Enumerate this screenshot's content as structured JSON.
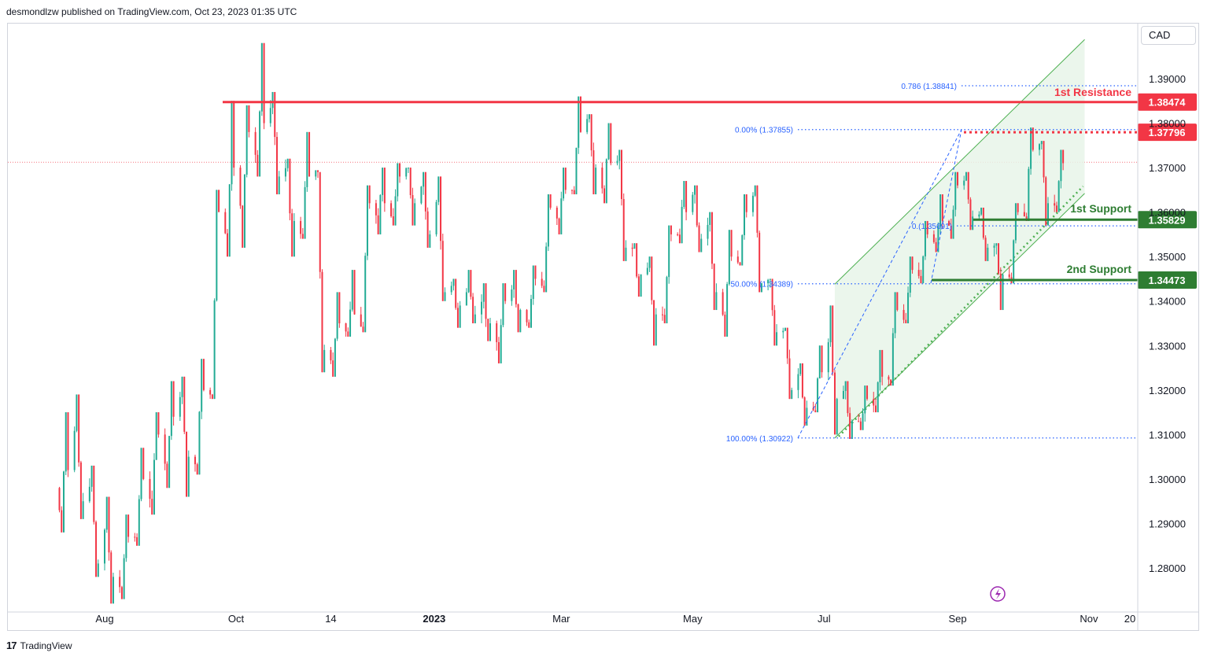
{
  "header": {
    "publisher_text": "desmondlzw published on TradingView.com, Oct 23, 2023 01:35 UTC",
    "currency": "CAD"
  },
  "footer": {
    "brand": "TradingView",
    "logo_mark": "17"
  },
  "colors": {
    "up": "#22ab94",
    "down": "#f23645",
    "resistance": "#f23645",
    "support": "#2e7d32",
    "fib": "#2962ff",
    "channel": "#4caf50",
    "channel_fill": "#e8f5e9"
  },
  "chart_data": {
    "type": "candlestick",
    "symbol_currency": "CAD",
    "ylim": [
      1.2714,
      1.4003
    ],
    "y_ticks": [
      1.39,
      1.38,
      1.37,
      1.36,
      1.35,
      1.34,
      1.33,
      1.32,
      1.31,
      1.3,
      1.29,
      1.28
    ],
    "y_tick_labels": [
      "1.39000",
      "1.38000",
      "1.37000",
      "1.36000",
      "1.35000",
      "1.34000",
      "1.33000",
      "1.32000",
      "1.31000",
      "1.30000",
      "1.29000",
      "1.28000"
    ],
    "x_ticks": [
      "Aug",
      "Oct",
      "14",
      "2023",
      "Mar",
      "May",
      "Jul",
      "Sep",
      "Nov",
      "20"
    ],
    "x_tick_dates": [
      "2022-08-01",
      "2022-10-01",
      "2022-11-14",
      "2023-01-01",
      "2023-03-01",
      "2023-05-01",
      "2023-07-01",
      "2023-09-01",
      "2023-11-01",
      "2023-11-20"
    ],
    "current_price_line": 1.3712,
    "levels": [
      {
        "name": "1st Resistance",
        "value": 1.38474,
        "label": "1.38474",
        "kind": "resistance"
      },
      {
        "name": "",
        "value": 1.37796,
        "label": "1.37796",
        "kind": "resistance-dotted"
      },
      {
        "name": "1st Support",
        "value": 1.35829,
        "label": "1.35829",
        "kind": "support"
      },
      {
        "name": "2nd Support",
        "value": 1.34473,
        "label": "1.34473",
        "kind": "support"
      }
    ],
    "fibonacci": [
      {
        "label": "0.786 (1.38841)",
        "value": 1.38841
      },
      {
        "label": "0.00% (1.37855)",
        "value": 1.37855
      },
      {
        "label": "0.(1.35691)",
        "value": 1.35691
      },
      {
        "label": "50.00% (1.34389)",
        "value": 1.34389
      },
      {
        "label": "100.00% (1.30922)",
        "value": 1.30922
      }
    ],
    "channel": {
      "start_date": "2023-07-06",
      "end_date": "2023-10-30",
      "upper_start": 1.3438,
      "upper_end": 1.3988,
      "lower_start": 1.3092,
      "lower_end": 1.3642
    },
    "ohlc_weekly": [
      {
        "t": "2022-07-11",
        "o": 1.298,
        "h": 1.315,
        "l": 1.288,
        "c": 1.302
      },
      {
        "t": "2022-07-18",
        "o": 1.302,
        "h": 1.319,
        "l": 1.291,
        "c": 1.295
      },
      {
        "t": "2022-07-25",
        "o": 1.295,
        "h": 1.303,
        "l": 1.278,
        "c": 1.281
      },
      {
        "t": "2022-08-01",
        "o": 1.281,
        "h": 1.296,
        "l": 1.272,
        "c": 1.278
      },
      {
        "t": "2022-08-08",
        "o": 1.278,
        "h": 1.292,
        "l": 1.273,
        "c": 1.287
      },
      {
        "t": "2022-08-15",
        "o": 1.287,
        "h": 1.307,
        "l": 1.285,
        "c": 1.3
      },
      {
        "t": "2022-08-22",
        "o": 1.3,
        "h": 1.315,
        "l": 1.292,
        "c": 1.31
      },
      {
        "t": "2022-08-29",
        "o": 1.31,
        "h": 1.322,
        "l": 1.298,
        "c": 1.314
      },
      {
        "t": "2022-09-05",
        "o": 1.314,
        "h": 1.323,
        "l": 1.296,
        "c": 1.305
      },
      {
        "t": "2022-09-12",
        "o": 1.305,
        "h": 1.327,
        "l": 1.301,
        "c": 1.32
      },
      {
        "t": "2022-09-19",
        "o": 1.32,
        "h": 1.365,
        "l": 1.318,
        "c": 1.36
      },
      {
        "t": "2022-09-26",
        "o": 1.36,
        "h": 1.385,
        "l": 1.35,
        "c": 1.37
      },
      {
        "t": "2022-10-03",
        "o": 1.37,
        "h": 1.384,
        "l": 1.352,
        "c": 1.378
      },
      {
        "t": "2022-10-10",
        "o": 1.378,
        "h": 1.398,
        "l": 1.368,
        "c": 1.38
      },
      {
        "t": "2022-10-17",
        "o": 1.38,
        "h": 1.387,
        "l": 1.364,
        "c": 1.368
      },
      {
        "t": "2022-10-24",
        "o": 1.368,
        "h": 1.372,
        "l": 1.35,
        "c": 1.358
      },
      {
        "t": "2022-10-31",
        "o": 1.358,
        "h": 1.378,
        "l": 1.354,
        "c": 1.368
      },
      {
        "t": "2022-11-07",
        "o": 1.368,
        "h": 1.369,
        "l": 1.324,
        "c": 1.329
      },
      {
        "t": "2022-11-14",
        "o": 1.329,
        "h": 1.342,
        "l": 1.323,
        "c": 1.335
      },
      {
        "t": "2022-11-21",
        "o": 1.335,
        "h": 1.347,
        "l": 1.332,
        "c": 1.337
      },
      {
        "t": "2022-11-28",
        "o": 1.337,
        "h": 1.366,
        "l": 1.333,
        "c": 1.362
      },
      {
        "t": "2022-12-05",
        "o": 1.362,
        "h": 1.37,
        "l": 1.355,
        "c": 1.362
      },
      {
        "t": "2022-12-12",
        "o": 1.362,
        "h": 1.371,
        "l": 1.357,
        "c": 1.368
      },
      {
        "t": "2022-12-19",
        "o": 1.368,
        "h": 1.37,
        "l": 1.357,
        "c": 1.362
      },
      {
        "t": "2022-12-26",
        "o": 1.362,
        "h": 1.369,
        "l": 1.352,
        "c": 1.355
      },
      {
        "t": "2023-01-02",
        "o": 1.355,
        "h": 1.368,
        "l": 1.34,
        "c": 1.342
      },
      {
        "t": "2023-01-09",
        "o": 1.342,
        "h": 1.345,
        "l": 1.334,
        "c": 1.339
      },
      {
        "t": "2023-01-16",
        "o": 1.339,
        "h": 1.347,
        "l": 1.335,
        "c": 1.337
      },
      {
        "t": "2023-01-23",
        "o": 1.337,
        "h": 1.344,
        "l": 1.331,
        "c": 1.335
      },
      {
        "t": "2023-01-30",
        "o": 1.335,
        "h": 1.344,
        "l": 1.326,
        "c": 1.34
      },
      {
        "t": "2023-02-06",
        "o": 1.34,
        "h": 1.347,
        "l": 1.333,
        "c": 1.338
      },
      {
        "t": "2023-02-13",
        "o": 1.338,
        "h": 1.348,
        "l": 1.334,
        "c": 1.345
      },
      {
        "t": "2023-02-20",
        "o": 1.345,
        "h": 1.364,
        "l": 1.342,
        "c": 1.361
      },
      {
        "t": "2023-02-27",
        "o": 1.361,
        "h": 1.37,
        "l": 1.355,
        "c": 1.365
      },
      {
        "t": "2023-03-06",
        "o": 1.365,
        "h": 1.386,
        "l": 1.364,
        "c": 1.378
      },
      {
        "t": "2023-03-13",
        "o": 1.378,
        "h": 1.382,
        "l": 1.364,
        "c": 1.37
      },
      {
        "t": "2023-03-20",
        "o": 1.37,
        "h": 1.38,
        "l": 1.362,
        "c": 1.371
      },
      {
        "t": "2023-03-27",
        "o": 1.371,
        "h": 1.374,
        "l": 1.349,
        "c": 1.352
      },
      {
        "t": "2023-04-03",
        "o": 1.352,
        "h": 1.353,
        "l": 1.341,
        "c": 1.346
      },
      {
        "t": "2023-04-10",
        "o": 1.346,
        "h": 1.35,
        "l": 1.33,
        "c": 1.337
      },
      {
        "t": "2023-04-17",
        "o": 1.337,
        "h": 1.357,
        "l": 1.335,
        "c": 1.355
      },
      {
        "t": "2023-04-24",
        "o": 1.355,
        "h": 1.367,
        "l": 1.353,
        "c": 1.36
      },
      {
        "t": "2023-05-01",
        "o": 1.36,
        "h": 1.366,
        "l": 1.351,
        "c": 1.354
      },
      {
        "t": "2023-05-08",
        "o": 1.354,
        "h": 1.36,
        "l": 1.338,
        "c": 1.342
      },
      {
        "t": "2023-05-15",
        "o": 1.342,
        "h": 1.356,
        "l": 1.332,
        "c": 1.35
      },
      {
        "t": "2023-05-22",
        "o": 1.35,
        "h": 1.364,
        "l": 1.348,
        "c": 1.36
      },
      {
        "t": "2023-05-29",
        "o": 1.36,
        "h": 1.366,
        "l": 1.342,
        "c": 1.344
      },
      {
        "t": "2023-06-05",
        "o": 1.344,
        "h": 1.345,
        "l": 1.33,
        "c": 1.333
      },
      {
        "t": "2023-06-12",
        "o": 1.333,
        "h": 1.334,
        "l": 1.318,
        "c": 1.32
      },
      {
        "t": "2023-06-19",
        "o": 1.32,
        "h": 1.326,
        "l": 1.312,
        "c": 1.316
      },
      {
        "t": "2023-06-26",
        "o": 1.316,
        "h": 1.33,
        "l": 1.315,
        "c": 1.324
      },
      {
        "t": "2023-07-03",
        "o": 1.324,
        "h": 1.339,
        "l": 1.31,
        "c": 1.318
      },
      {
        "t": "2023-07-10",
        "o": 1.318,
        "h": 1.322,
        "l": 1.309,
        "c": 1.313
      },
      {
        "t": "2023-07-17",
        "o": 1.313,
        "h": 1.321,
        "l": 1.311,
        "c": 1.318
      },
      {
        "t": "2023-07-24",
        "o": 1.318,
        "h": 1.329,
        "l": 1.315,
        "c": 1.323
      },
      {
        "t": "2023-07-31",
        "o": 1.323,
        "h": 1.342,
        "l": 1.321,
        "c": 1.338
      },
      {
        "t": "2023-08-07",
        "o": 1.338,
        "h": 1.35,
        "l": 1.335,
        "c": 1.347
      },
      {
        "t": "2023-08-14",
        "o": 1.347,
        "h": 1.358,
        "l": 1.344,
        "c": 1.355
      },
      {
        "t": "2023-08-21",
        "o": 1.355,
        "h": 1.364,
        "l": 1.351,
        "c": 1.358
      },
      {
        "t": "2023-08-28",
        "o": 1.358,
        "h": 1.369,
        "l": 1.354,
        "c": 1.366
      },
      {
        "t": "2023-09-04",
        "o": 1.366,
        "h": 1.369,
        "l": 1.356,
        "c": 1.359
      },
      {
        "t": "2023-09-11",
        "o": 1.359,
        "h": 1.361,
        "l": 1.349,
        "c": 1.352
      },
      {
        "t": "2023-09-18",
        "o": 1.352,
        "h": 1.353,
        "l": 1.338,
        "c": 1.346
      },
      {
        "t": "2023-09-25",
        "o": 1.346,
        "h": 1.362,
        "l": 1.344,
        "c": 1.36
      },
      {
        "t": "2023-10-02",
        "o": 1.36,
        "h": 1.379,
        "l": 1.358,
        "c": 1.374
      },
      {
        "t": "2023-10-09",
        "o": 1.374,
        "h": 1.376,
        "l": 1.357,
        "c": 1.362
      },
      {
        "t": "2023-10-16",
        "o": 1.362,
        "h": 1.374,
        "l": 1.36,
        "c": 1.371
      }
    ]
  }
}
